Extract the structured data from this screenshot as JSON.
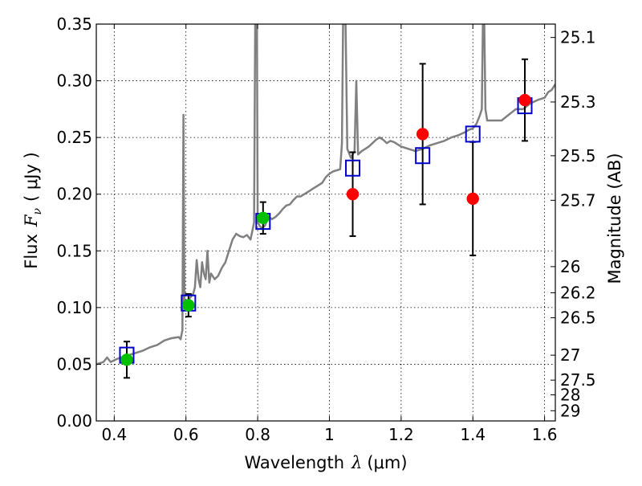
{
  "chart_data": {
    "type": "line",
    "xlabel_main": "Wavelength",
    "xlabel_symbol": "λ",
    "xlabel_unit": "(μm)",
    "ylabel_main": "Flux",
    "ylabel_symbol": "F",
    "ylabel_subscript": "ν",
    "ylabel_unit": "( μJy )",
    "y2label": "Magnitude (AB)",
    "xlim": [
      0.35,
      1.63
    ],
    "ylim": [
      0.0,
      0.35
    ],
    "grid": true,
    "x_ticks": [
      {
        "value": 0.4,
        "label": "0.4"
      },
      {
        "value": 0.6,
        "label": "0.6"
      },
      {
        "value": 0.8,
        "label": "0.8"
      },
      {
        "value": 1.0,
        "label": "1"
      },
      {
        "value": 1.2,
        "label": "1.2"
      },
      {
        "value": 1.4,
        "label": "1.4"
      },
      {
        "value": 1.6,
        "label": "1.6"
      }
    ],
    "y_ticks": [
      {
        "value": 0.0,
        "label": "0.00"
      },
      {
        "value": 0.05,
        "label": "0.05"
      },
      {
        "value": 0.1,
        "label": "0.10"
      },
      {
        "value": 0.15,
        "label": "0.15"
      },
      {
        "value": 0.2,
        "label": "0.20"
      },
      {
        "value": 0.25,
        "label": "0.25"
      },
      {
        "value": 0.3,
        "label": "0.30"
      },
      {
        "value": 0.35,
        "label": "0.35"
      }
    ],
    "mag_ticks": [
      {
        "flux": 0.3382,
        "label": "25.1"
      },
      {
        "flux": 0.2813,
        "label": "25.3"
      },
      {
        "flux": 0.2339,
        "label": "25.5"
      },
      {
        "flux": 0.1946,
        "label": "25.7"
      },
      {
        "flux": 0.1361,
        "label": "26"
      },
      {
        "flux": 0.113,
        "label": "26.2"
      },
      {
        "flux": 0.091,
        "label": "26.5"
      },
      {
        "flux": 0.058,
        "label": "27"
      },
      {
        "flux": 0.036,
        "label": "27.5"
      },
      {
        "flux": 0.023,
        "label": "28"
      },
      {
        "flux": 0.009,
        "label": "29"
      }
    ],
    "series": [
      {
        "name": "model-spectrum",
        "kind": "line",
        "color": "#808080",
        "points": [
          [
            0.35,
            0.05
          ],
          [
            0.37,
            0.052
          ],
          [
            0.38,
            0.056
          ],
          [
            0.39,
            0.052
          ],
          [
            0.41,
            0.055
          ],
          [
            0.42,
            0.056
          ],
          [
            0.44,
            0.058
          ],
          [
            0.46,
            0.06
          ],
          [
            0.48,
            0.062
          ],
          [
            0.5,
            0.065
          ],
          [
            0.52,
            0.067
          ],
          [
            0.54,
            0.071
          ],
          [
            0.56,
            0.073
          ],
          [
            0.58,
            0.074
          ],
          [
            0.585,
            0.072
          ],
          [
            0.59,
            0.08
          ],
          [
            0.593,
            0.27
          ],
          [
            0.596,
            0.1
          ],
          [
            0.6,
            0.103
          ],
          [
            0.61,
            0.108
          ],
          [
            0.62,
            0.112
          ],
          [
            0.625,
            0.118
          ],
          [
            0.63,
            0.142
          ],
          [
            0.635,
            0.125
          ],
          [
            0.64,
            0.118
          ],
          [
            0.645,
            0.14
          ],
          [
            0.65,
            0.13
          ],
          [
            0.655,
            0.125
          ],
          [
            0.66,
            0.15
          ],
          [
            0.665,
            0.122
          ],
          [
            0.67,
            0.13
          ],
          [
            0.68,
            0.125
          ],
          [
            0.69,
            0.128
          ],
          [
            0.7,
            0.135
          ],
          [
            0.71,
            0.14
          ],
          [
            0.72,
            0.15
          ],
          [
            0.73,
            0.16
          ],
          [
            0.74,
            0.165
          ],
          [
            0.75,
            0.163
          ],
          [
            0.76,
            0.162
          ],
          [
            0.77,
            0.164
          ],
          [
            0.78,
            0.16
          ],
          [
            0.79,
            0.175
          ],
          [
            0.793,
            0.35
          ],
          [
            0.798,
            0.35
          ],
          [
            0.8,
            0.175
          ],
          [
            0.81,
            0.17
          ],
          [
            0.82,
            0.172
          ],
          [
            0.83,
            0.18
          ],
          [
            0.84,
            0.178
          ],
          [
            0.85,
            0.18
          ],
          [
            0.86,
            0.183
          ],
          [
            0.87,
            0.187
          ],
          [
            0.88,
            0.19
          ],
          [
            0.89,
            0.191
          ],
          [
            0.9,
            0.195
          ],
          [
            0.91,
            0.198
          ],
          [
            0.92,
            0.198
          ],
          [
            0.93,
            0.2
          ],
          [
            0.94,
            0.202
          ],
          [
            0.95,
            0.204
          ],
          [
            0.96,
            0.206
          ],
          [
            0.97,
            0.208
          ],
          [
            0.98,
            0.21
          ],
          [
            0.99,
            0.215
          ],
          [
            1.0,
            0.218
          ],
          [
            1.01,
            0.22
          ],
          [
            1.02,
            0.221
          ],
          [
            1.03,
            0.222
          ],
          [
            1.035,
            0.245
          ],
          [
            1.038,
            0.35
          ],
          [
            1.045,
            0.35
          ],
          [
            1.05,
            0.24
          ],
          [
            1.06,
            0.232
          ],
          [
            1.07,
            0.238
          ],
          [
            1.075,
            0.3
          ],
          [
            1.08,
            0.235
          ],
          [
            1.09,
            0.238
          ],
          [
            1.1,
            0.24
          ],
          [
            1.11,
            0.242
          ],
          [
            1.12,
            0.245
          ],
          [
            1.13,
            0.248
          ],
          [
            1.14,
            0.25
          ],
          [
            1.15,
            0.248
          ],
          [
            1.16,
            0.245
          ],
          [
            1.17,
            0.247
          ],
          [
            1.18,
            0.246
          ],
          [
            1.2,
            0.242
          ],
          [
            1.22,
            0.24
          ],
          [
            1.24,
            0.238
          ],
          [
            1.26,
            0.24
          ],
          [
            1.28,
            0.243
          ],
          [
            1.3,
            0.245
          ],
          [
            1.32,
            0.247
          ],
          [
            1.34,
            0.25
          ],
          [
            1.36,
            0.252
          ],
          [
            1.38,
            0.255
          ],
          [
            1.39,
            0.257
          ],
          [
            1.4,
            0.258
          ],
          [
            1.41,
            0.262
          ],
          [
            1.42,
            0.27
          ],
          [
            1.425,
            0.275
          ],
          [
            1.428,
            0.35
          ],
          [
            1.432,
            0.35
          ],
          [
            1.435,
            0.275
          ],
          [
            1.44,
            0.265
          ],
          [
            1.46,
            0.265
          ],
          [
            1.48,
            0.265
          ],
          [
            1.5,
            0.27
          ],
          [
            1.52,
            0.275
          ],
          [
            1.54,
            0.275
          ],
          [
            1.56,
            0.28
          ],
          [
            1.58,
            0.283
          ],
          [
            1.6,
            0.285
          ],
          [
            1.61,
            0.29
          ],
          [
            1.62,
            0.292
          ],
          [
            1.63,
            0.297
          ]
        ]
      },
      {
        "name": "model-photometry",
        "kind": "open-square",
        "color": "#0000cc",
        "points": [
          [
            0.435,
            0.058
          ],
          [
            0.607,
            0.104
          ],
          [
            0.815,
            0.176
          ],
          [
            1.065,
            0.223
          ],
          [
            1.26,
            0.234
          ],
          [
            1.4,
            0.253
          ],
          [
            1.545,
            0.278
          ]
        ]
      },
      {
        "name": "green-observations",
        "kind": "filled-circle",
        "color": "#00c000",
        "points": [
          {
            "x": 0.435,
            "y": 0.054,
            "err": 0.016
          },
          {
            "x": 0.607,
            "y": 0.102,
            "err": 0.01
          },
          {
            "x": 0.815,
            "y": 0.179,
            "err": 0.014
          }
        ]
      },
      {
        "name": "red-observations",
        "kind": "filled-circle",
        "color": "#ff0000",
        "points": [
          {
            "x": 1.065,
            "y": 0.2,
            "err": 0.037
          },
          {
            "x": 1.26,
            "y": 0.253,
            "err": 0.062
          },
          {
            "x": 1.4,
            "y": 0.196,
            "err": 0.05
          },
          {
            "x": 1.545,
            "y": 0.283,
            "err": 0.036
          }
        ]
      }
    ]
  }
}
